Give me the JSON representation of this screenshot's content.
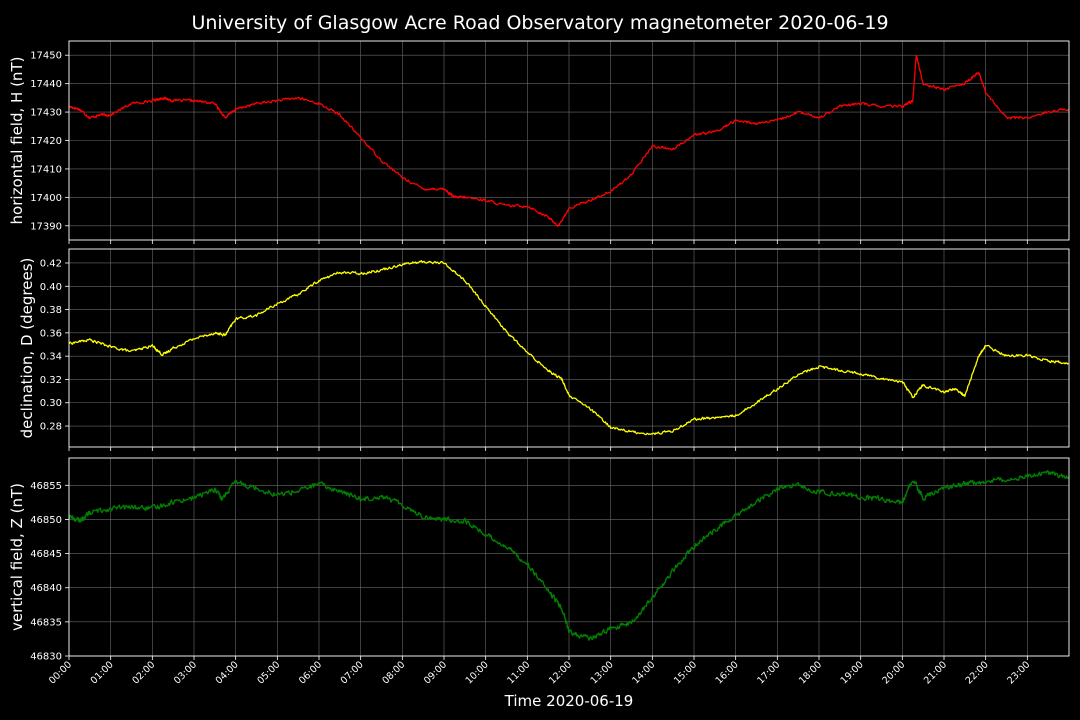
{
  "chart_data": {
    "type": "line",
    "title": "University of Glasgow Acre Road Observatory magnetometer 2020-06-19",
    "xlabel": "Time 2020-06-19",
    "x_ticks": [
      "00:00",
      "01:00",
      "02:00",
      "03:00",
      "04:00",
      "05:00",
      "06:00",
      "07:00",
      "08:00",
      "09:00",
      "10:00",
      "11:00",
      "12:00",
      "13:00",
      "14:00",
      "15:00",
      "16:00",
      "17:00",
      "18:00",
      "19:00",
      "20:00",
      "21:00",
      "22:00",
      "23:00"
    ],
    "xlim": [
      "00:00",
      "24:00"
    ],
    "grid": true,
    "background": "#000000",
    "panels": [
      {
        "ylabel": "horizontal field, H (nT)",
        "color": "#ff0000",
        "ylim": [
          17385,
          17455
        ],
        "y_ticks": [
          "17390",
          "17400",
          "17410",
          "17420",
          "17430",
          "17440",
          "17450"
        ],
        "series": [
          {
            "x": [
              "00:00",
              "00:15",
              "00:30",
              "00:45",
              "01:00",
              "01:30",
              "02:00",
              "02:15",
              "02:30",
              "03:00",
              "03:30",
              "03:45",
              "04:00",
              "04:30",
              "05:00",
              "05:30",
              "06:00",
              "06:30",
              "07:00",
              "07:30",
              "08:00",
              "08:30",
              "09:00",
              "09:15",
              "09:30",
              "10:00",
              "10:30",
              "11:00",
              "11:30",
              "11:45",
              "12:00",
              "12:30",
              "13:00",
              "13:30",
              "14:00",
              "14:30",
              "15:00",
              "15:30",
              "16:00",
              "16:30",
              "17:00",
              "17:30",
              "18:00",
              "18:30",
              "19:00",
              "19:30",
              "20:00",
              "20:15",
              "20:20",
              "20:30",
              "21:00",
              "21:30",
              "21:50",
              "22:00",
              "22:30",
              "23:00",
              "23:30",
              "23:59"
            ],
            "y": [
              17432,
              17431,
              17428,
              17429,
              17429,
              17433,
              17434,
              17435,
              17434,
              17434,
              17433,
              17428,
              17431,
              17433,
              17434,
              17435,
              17433,
              17429,
              17421,
              17413,
              17407,
              17403,
              17403,
              17400,
              17400,
              17399,
              17397,
              17397,
              17393,
              17390,
              17396,
              17399,
              17402,
              17408,
              17418,
              17417,
              17422,
              17423,
              17427,
              17426,
              17427,
              17430,
              17428,
              17432,
              17433,
              17432,
              17432,
              17434,
              17450,
              17440,
              17438,
              17440,
              17444,
              17437,
              17428,
              17428,
              17430,
              17431
            ]
          }
        ]
      },
      {
        "ylabel": "declination, D (degrees)",
        "color": "#ffff00",
        "ylim": [
          0.262,
          0.432
        ],
        "y_ticks": [
          "0.28",
          "0.30",
          "0.32",
          "0.34",
          "0.36",
          "0.38",
          "0.40",
          "0.42"
        ],
        "series": [
          {
            "x": [
              "00:00",
              "00:30",
              "01:00",
              "01:30",
              "02:00",
              "02:15",
              "02:30",
              "03:00",
              "03:30",
              "03:45",
              "04:00",
              "04:30",
              "05:00",
              "05:30",
              "06:00",
              "06:30",
              "07:00",
              "07:30",
              "08:00",
              "08:30",
              "09:00",
              "09:30",
              "10:00",
              "10:30",
              "11:00",
              "11:30",
              "11:50",
              "12:00",
              "12:30",
              "13:00",
              "13:30",
              "14:00",
              "14:30",
              "15:00",
              "15:30",
              "16:00",
              "16:30",
              "17:00",
              "17:30",
              "18:00",
              "18:30",
              "19:00",
              "19:30",
              "20:00",
              "20:15",
              "20:30",
              "21:00",
              "21:15",
              "21:30",
              "21:50",
              "22:00",
              "22:30",
              "23:00",
              "23:30",
              "23:59"
            ],
            "y": [
              0.351,
              0.354,
              0.348,
              0.344,
              0.349,
              0.341,
              0.347,
              0.355,
              0.36,
              0.358,
              0.372,
              0.375,
              0.385,
              0.393,
              0.405,
              0.412,
              0.411,
              0.414,
              0.419,
              0.421,
              0.42,
              0.405,
              0.383,
              0.361,
              0.343,
              0.328,
              0.32,
              0.306,
              0.295,
              0.279,
              0.275,
              0.273,
              0.276,
              0.286,
              0.287,
              0.289,
              0.3,
              0.312,
              0.324,
              0.331,
              0.328,
              0.325,
              0.321,
              0.318,
              0.305,
              0.315,
              0.309,
              0.312,
              0.306,
              0.34,
              0.349,
              0.34,
              0.341,
              0.336,
              0.334
            ]
          }
        ]
      },
      {
        "ylabel": "vertical field, Z (nT)",
        "color": "#008000",
        "ylim": [
          46830,
          46859
        ],
        "y_ticks": [
          "46830",
          "46835",
          "46840",
          "46845",
          "46850",
          "46855"
        ],
        "series": [
          {
            "x": [
              "00:00",
              "00:15",
              "00:30",
              "01:00",
              "01:30",
              "02:00",
              "02:30",
              "03:00",
              "03:30",
              "03:40",
              "04:00",
              "04:30",
              "05:00",
              "05:30",
              "06:00",
              "06:30",
              "07:00",
              "07:30",
              "08:00",
              "08:30",
              "09:00",
              "09:30",
              "10:00",
              "10:30",
              "11:00",
              "11:30",
              "11:50",
              "12:00",
              "12:30",
              "13:00",
              "13:30",
              "14:00",
              "14:30",
              "15:00",
              "15:30",
              "16:00",
              "16:30",
              "17:00",
              "17:30",
              "18:00",
              "18:30",
              "19:00",
              "19:30",
              "20:00",
              "20:15",
              "20:30",
              "21:00",
              "21:30",
              "22:00",
              "22:30",
              "23:00",
              "23:30",
              "23:59"
            ],
            "y": [
              46850.5,
              46849.8,
              46851.0,
              46851.6,
              46851.8,
              46851.6,
              46852.6,
              46853.2,
              46854.4,
              46853.0,
              46855.5,
              46854.6,
              46853.6,
              46854.2,
              46855.2,
              46854.1,
              46853.0,
              46853.4,
              46852.2,
              46850.4,
              46850.0,
              46849.8,
              46847.8,
              46846.0,
              46843.5,
              46839.5,
              46837.0,
              46833.5,
              46832.5,
              46834.0,
              46834.8,
              46838.5,
              46842.5,
              46846.0,
              46848.5,
              46850.5,
              46852.5,
              46854.5,
              46855.0,
              46854.0,
              46853.8,
              46853.2,
              46853.0,
              46852.4,
              46856.0,
              46853.2,
              46854.5,
              46855.2,
              46855.6,
              46856.0,
              46856.4,
              46856.8,
              46856.2
            ]
          }
        ]
      }
    ]
  }
}
